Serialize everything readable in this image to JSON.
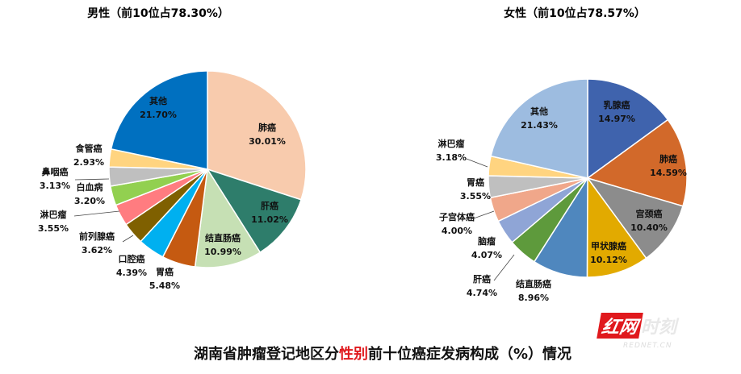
{
  "title": {
    "before": "湖南省肿瘤登记地区分",
    "highlight": "性别",
    "after": "前十位癌症发病构成（%）情况",
    "highlight_color": "#e0191d"
  },
  "watermark": {
    "brand_box": "红网",
    "brand_rest": "时刻",
    "domain": "REDNET.CN"
  },
  "chart_data": [
    {
      "type": "pie",
      "title": "男性（前10位占78.30%）",
      "start": "12 o'clock",
      "direction": "clockwise",
      "slices": [
        {
          "label": "肺癌",
          "value": 30.01,
          "text": "30.01%",
          "color": "#F8CBAD"
        },
        {
          "label": "肝癌",
          "value": 11.02,
          "text": "11.02%",
          "color": "#2E7D6B"
        },
        {
          "label": "结直肠癌",
          "value": 10.99,
          "text": "10.99%",
          "color": "#C6E0B4"
        },
        {
          "label": "胃癌",
          "value": 5.48,
          "text": "5.48%",
          "color": "#C55A11"
        },
        {
          "label": "口腔癌",
          "value": 4.39,
          "text": "4.39%",
          "color": "#00B0F0"
        },
        {
          "label": "前列腺癌",
          "value": 3.62,
          "text": "3.62%",
          "color": "#7F6000"
        },
        {
          "label": "淋巴瘤",
          "value": 3.55,
          "text": "3.55%",
          "color": "#FF7C80"
        },
        {
          "label": "白血病",
          "value": 3.2,
          "text": "3.20%",
          "color": "#92D050"
        },
        {
          "label": "鼻咽癌",
          "value": 3.13,
          "text": "3.13%",
          "color": "#BFBFBF"
        },
        {
          "label": "食管癌",
          "value": 2.93,
          "text": "2.93%",
          "color": "#FFD480"
        },
        {
          "label": "其他",
          "value": 21.7,
          "text": "21.70%",
          "color": "#0070C0"
        }
      ]
    },
    {
      "type": "pie",
      "title": "女性（前10位占78.57%）",
      "start": "12 o'clock",
      "direction": "clockwise",
      "slices": [
        {
          "label": "乳腺癌",
          "value": 14.97,
          "text": "14.97%",
          "color": "#3F63AD"
        },
        {
          "label": "肺癌",
          "value": 14.59,
          "text": "14.59%",
          "color": "#D2692A"
        },
        {
          "label": "宫颈癌",
          "value": 10.4,
          "text": "10.40%",
          "color": "#8C8C8C"
        },
        {
          "label": "甲状腺癌",
          "value": 10.12,
          "text": "10.12%",
          "color": "#E2AA00"
        },
        {
          "label": "结直肠癌",
          "value": 8.96,
          "text": "8.96%",
          "color": "#4F87BE"
        },
        {
          "label": "肝癌",
          "value": 4.74,
          "text": "4.74%",
          "color": "#5E9A3C"
        },
        {
          "label": "脑瘤",
          "value": 4.07,
          "text": "4.07%",
          "color": "#8FA5D6"
        },
        {
          "label": "子宫体癌",
          "value": 4.0,
          "text": "4.00%",
          "color": "#F0A78A"
        },
        {
          "label": "胃癌",
          "value": 3.55,
          "text": "3.55%",
          "color": "#BFBFBF"
        },
        {
          "label": "淋巴瘤",
          "value": 3.18,
          "text": "3.18%",
          "color": "#FFD480"
        },
        {
          "label": "其他",
          "value": 21.43,
          "text": "21.43%",
          "color": "#9DBCE0"
        }
      ]
    }
  ]
}
